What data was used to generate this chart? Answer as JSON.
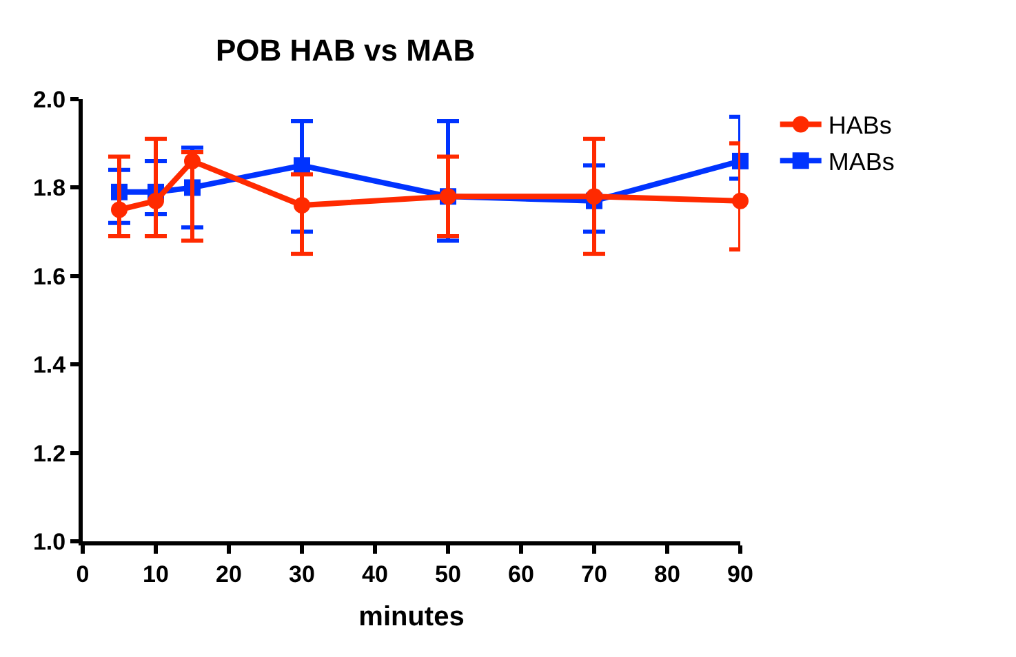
{
  "chart_data": {
    "type": "line",
    "title": "POB HAB vs MAB",
    "xlabel": "minutes",
    "x": [
      5,
      10,
      15,
      30,
      50,
      70,
      90
    ],
    "series": [
      {
        "name": "HABs",
        "color": "#ff2a00",
        "marker": "circle",
        "values": [
          1.75,
          1.77,
          1.86,
          1.76,
          1.78,
          1.78,
          1.77
        ],
        "errors": [
          [
            1.69,
            1.87
          ],
          [
            1.69,
            1.91
          ],
          [
            1.68,
            1.88
          ],
          [
            1.65,
            1.83
          ],
          [
            1.69,
            1.87
          ],
          [
            1.65,
            1.91
          ],
          [
            1.66,
            1.9
          ]
        ]
      },
      {
        "name": "MABs",
        "color": "#0033ff",
        "marker": "square",
        "values": [
          1.79,
          1.79,
          1.8,
          1.85,
          1.78,
          1.77,
          1.86
        ],
        "errors": [
          [
            1.72,
            1.84
          ],
          [
            1.74,
            1.86
          ],
          [
            1.71,
            1.89
          ],
          [
            1.7,
            1.95
          ],
          [
            1.68,
            1.95
          ],
          [
            1.7,
            1.85
          ],
          [
            1.82,
            1.96
          ]
        ]
      }
    ],
    "xlim": [
      0,
      90
    ],
    "xticks": [
      0,
      10,
      20,
      30,
      40,
      50,
      60,
      70,
      80,
      90
    ],
    "ylim": [
      1.0,
      2.0
    ],
    "yticks": [
      {
        "value": 1.0,
        "label": "1.0"
      },
      {
        "value": 1.2,
        "label": "1.2"
      },
      {
        "value": 1.4,
        "label": "1.4"
      },
      {
        "value": 1.6,
        "label": "1.6"
      },
      {
        "value": 1.8,
        "label": "1.8"
      },
      {
        "value": 2.0,
        "label": "2.0"
      }
    ],
    "legend": "top right",
    "line_style": "solid"
  }
}
